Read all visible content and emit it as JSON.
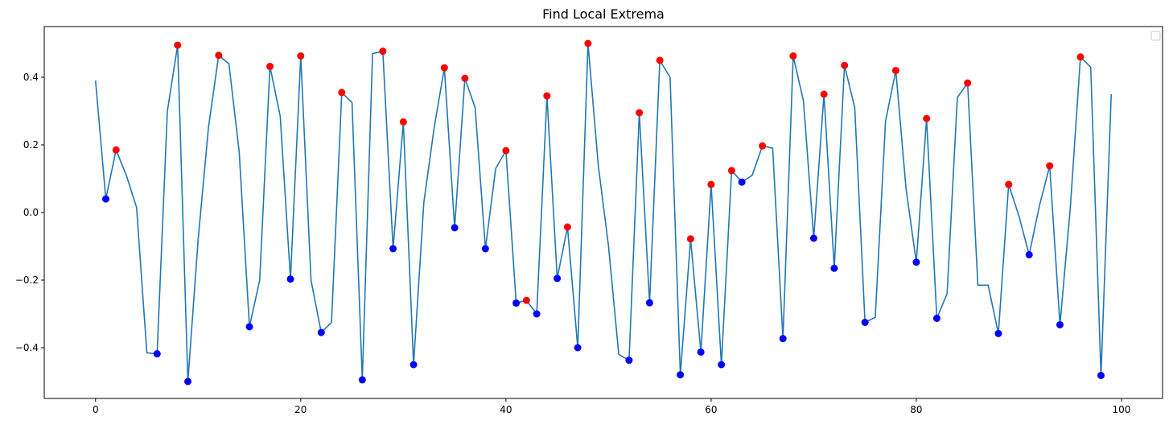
{
  "chart_data": {
    "type": "line",
    "title": "Find Local Extrema",
    "xlabel": "",
    "ylabel": "",
    "xlim": [
      -5,
      104
    ],
    "ylim": [
      -0.55,
      0.55
    ],
    "xticks": [
      0,
      20,
      40,
      60,
      80,
      100
    ],
    "yticks": [
      -0.4,
      -0.2,
      0.0,
      0.2,
      0.4
    ],
    "xtick_labels": [
      "0",
      "20",
      "40",
      "60",
      "80",
      "100"
    ],
    "ytick_labels": [
      "−0.4",
      "−0.2",
      "0.0",
      "0.2",
      "0.4"
    ],
    "grid": false,
    "legend": {
      "placement": "top-right",
      "entries": []
    },
    "colors": {
      "line": "#1f77b4",
      "maxima": "#ff0000",
      "minima": "#0000ff"
    },
    "series": [
      {
        "type": "line",
        "x": [
          0,
          1,
          2,
          3,
          4,
          5,
          6,
          7,
          8,
          9,
          10,
          11,
          12,
          13,
          14,
          15,
          16,
          17,
          18,
          19,
          20,
          21,
          22,
          23,
          24,
          25,
          26,
          27,
          28,
          29,
          30,
          31,
          32,
          33,
          34,
          35,
          36,
          37,
          38,
          39,
          40,
          41,
          42,
          43,
          44,
          45,
          46,
          47,
          48,
          49,
          50,
          51,
          52,
          53,
          54,
          55,
          56,
          57,
          58,
          59,
          60,
          61,
          62,
          63,
          64,
          65,
          66,
          67,
          68,
          69,
          70,
          71,
          72,
          73,
          74,
          75,
          76,
          77,
          78,
          79,
          80,
          81,
          82,
          83,
          84,
          85,
          86,
          87,
          88,
          89,
          90,
          91,
          92,
          93,
          94,
          95,
          96,
          97,
          98,
          99
        ],
        "y": [
          0.39,
          0.04,
          0.185,
          0.11,
          0.015,
          -0.415,
          -0.418,
          0.3,
          0.495,
          -0.5,
          -0.08,
          0.25,
          0.465,
          0.44,
          0.18,
          -0.338,
          -0.2,
          0.432,
          0.285,
          -0.197,
          0.463,
          -0.2,
          -0.355,
          -0.325,
          0.355,
          0.325,
          -0.495,
          0.47,
          0.477,
          -0.107,
          0.268,
          -0.45,
          0.03,
          0.25,
          0.428,
          -0.045,
          0.397,
          0.31,
          -0.107,
          0.13,
          0.183,
          -0.268,
          -0.26,
          -0.3,
          0.345,
          -0.195,
          -0.043,
          -0.4,
          0.5,
          0.14,
          -0.1,
          -0.42,
          -0.437,
          0.295,
          -0.267,
          0.45,
          0.4,
          -0.48,
          -0.078,
          -0.413,
          0.083,
          -0.45,
          0.124,
          0.09,
          0.11,
          0.197,
          0.19,
          -0.373,
          0.463,
          0.33,
          -0.076,
          0.35,
          -0.165,
          0.435,
          0.31,
          -0.325,
          -0.31,
          0.27,
          0.42,
          0.07,
          -0.147,
          0.278,
          -0.313,
          -0.24,
          0.34,
          0.383,
          -0.215,
          -0.215,
          -0.358,
          0.083,
          -0.01,
          -0.125,
          0.02,
          0.138,
          -0.332,
          0.01,
          0.46,
          0.43,
          -0.482,
          0.35
        ]
      },
      {
        "type": "scatter",
        "x": [
          2,
          8,
          12,
          17,
          20,
          24,
          28,
          30,
          34,
          36,
          40,
          42,
          44,
          46,
          48,
          53,
          55,
          58,
          60,
          62,
          65,
          68,
          71,
          73,
          78,
          81,
          85,
          89,
          93,
          96
        ],
        "y": [
          0.185,
          0.495,
          0.465,
          0.432,
          0.463,
          0.355,
          0.477,
          0.268,
          0.428,
          0.397,
          0.183,
          -0.26,
          0.345,
          -0.043,
          0.5,
          0.295,
          0.45,
          -0.078,
          0.083,
          0.124,
          0.197,
          0.463,
          0.35,
          0.435,
          0.42,
          0.278,
          0.383,
          0.083,
          0.138,
          0.46
        ]
      },
      {
        "type": "scatter",
        "x": [
          1,
          6,
          9,
          15,
          19,
          22,
          26,
          29,
          31,
          35,
          38,
          41,
          43,
          45,
          47,
          52,
          54,
          57,
          59,
          61,
          63,
          67,
          70,
          72,
          75,
          80,
          82,
          88,
          91,
          94,
          98
        ],
        "y": [
          0.04,
          -0.418,
          -0.5,
          -0.338,
          -0.197,
          -0.355,
          -0.495,
          -0.107,
          -0.45,
          -0.045,
          -0.107,
          -0.268,
          -0.3,
          -0.195,
          -0.4,
          -0.437,
          -0.267,
          -0.48,
          -0.413,
          -0.45,
          0.09,
          -0.373,
          -0.076,
          -0.165,
          -0.325,
          -0.147,
          -0.313,
          -0.358,
          -0.125,
          -0.332,
          -0.482
        ]
      }
    ]
  }
}
